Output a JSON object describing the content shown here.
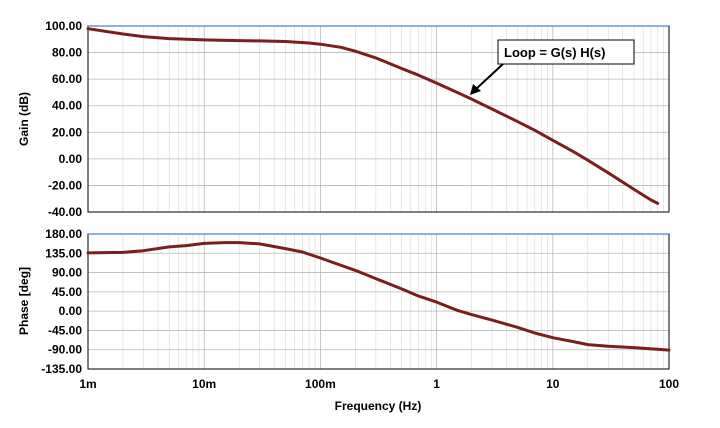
{
  "chart_data": [
    {
      "type": "line",
      "id": "gain",
      "ylabel": "Gain (dB)",
      "xscale": "log",
      "xlim": [
        0.001,
        100
      ],
      "ylim": [
        -40,
        100
      ],
      "yticks": [
        100,
        80,
        60,
        40,
        20,
        0,
        -20,
        -40
      ],
      "ytick_labels": [
        "100.00",
        "80.00",
        "60.00",
        "40.00",
        "20.00",
        "0.00",
        "-20.00",
        "-40.00"
      ],
      "grid": true,
      "series": [
        {
          "color": "#7a1e1e",
          "points": [
            [
              0.001,
              98
            ],
            [
              0.002,
              94
            ],
            [
              0.003,
              92
            ],
            [
              0.005,
              90.5
            ],
            [
              0.01,
              89.5
            ],
            [
              0.02,
              89
            ],
            [
              0.03,
              88.8
            ],
            [
              0.05,
              88.3
            ],
            [
              0.08,
              87.2
            ],
            [
              0.1,
              86.3
            ],
            [
              0.15,
              84
            ],
            [
              0.2,
              81
            ],
            [
              0.3,
              76
            ],
            [
              0.5,
              68
            ],
            [
              0.7,
              63
            ],
            [
              1,
              57
            ],
            [
              1.5,
              50
            ],
            [
              2,
              45
            ],
            [
              3,
              37.5
            ],
            [
              5,
              28
            ],
            [
              7,
              21.5
            ],
            [
              10,
              14
            ],
            [
              15,
              5.5
            ],
            [
              20,
              -1
            ],
            [
              30,
              -10.5
            ],
            [
              50,
              -23
            ],
            [
              70,
              -31
            ],
            [
              80,
              -33.5
            ]
          ]
        }
      ],
      "annotation": {
        "text": "Loop = G(s) H(s)"
      }
    },
    {
      "type": "line",
      "id": "phase",
      "ylabel": "Phase [deg]",
      "xlabel": "Frequency (Hz)",
      "xscale": "log",
      "xlim": [
        0.001,
        100
      ],
      "ylim": [
        -135,
        180
      ],
      "yticks": [
        180,
        135,
        90,
        45,
        0,
        -45,
        -90,
        -135
      ],
      "ytick_labels": [
        "180.00",
        "135.00",
        "90.00",
        "45.00",
        "0.00",
        "-45.00",
        "-90.00",
        "-135.00"
      ],
      "xticks": [
        0.001,
        0.01,
        0.1,
        1,
        10,
        100
      ],
      "xtick_labels": [
        "1m",
        "10m",
        "100m",
        "1",
        "10",
        "100"
      ],
      "grid": true,
      "series": [
        {
          "color": "#7a1e1e",
          "points": [
            [
              0.001,
              136
            ],
            [
              0.002,
              137
            ],
            [
              0.003,
              141
            ],
            [
              0.005,
              150
            ],
            [
              0.007,
              153
            ],
            [
              0.01,
              158
            ],
            [
              0.015,
              160
            ],
            [
              0.02,
              160
            ],
            [
              0.03,
              157
            ],
            [
              0.05,
              146
            ],
            [
              0.07,
              138
            ],
            [
              0.1,
              124
            ],
            [
              0.2,
              95
            ],
            [
              0.3,
              76
            ],
            [
              0.5,
              52
            ],
            [
              0.7,
              35
            ],
            [
              1,
              21
            ],
            [
              1.5,
              2
            ],
            [
              2,
              -8
            ],
            [
              3,
              -21
            ],
            [
              5,
              -38
            ],
            [
              7,
              -51
            ],
            [
              10,
              -62
            ],
            [
              15,
              -71
            ],
            [
              20,
              -78
            ],
            [
              30,
              -82
            ],
            [
              50,
              -85
            ],
            [
              70,
              -88
            ],
            [
              80,
              -89
            ],
            [
              100,
              -91
            ]
          ]
        }
      ]
    }
  ]
}
